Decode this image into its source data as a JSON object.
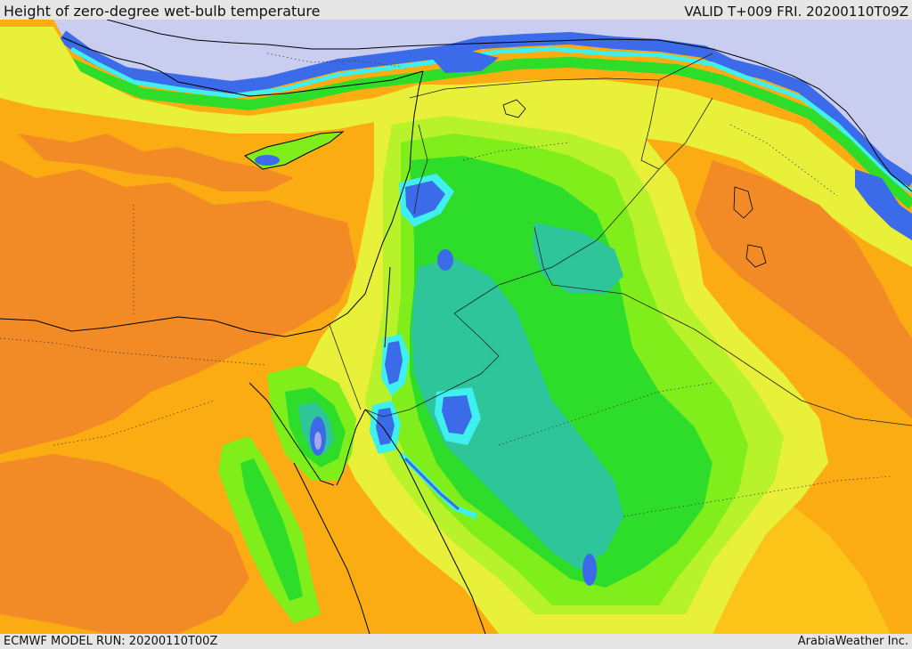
{
  "header": {
    "title": "Height of zero-degree wet-bulb temperature",
    "valid": "VALID T+009 FRI. 20200110T09Z"
  },
  "footer": {
    "model_run": "ECMWF MODEL RUN: 20200110T00Z",
    "credit": "ArabiaWeather Inc."
  },
  "palette": {
    "sea_north": "#c9cdef",
    "dark_orange": "#f28b25",
    "orange": "#fbac12",
    "light_orange": "#fcc419",
    "yellow": "#e8f03a",
    "yellow_green": "#b7f22a",
    "light_green": "#7fee1b",
    "green": "#2edc2a",
    "teal": "#2fc59a",
    "cyan": "#3ef0ee",
    "blue": "#3b6be8",
    "dark_blue": "#3434b4",
    "lavender": "#a9a6ea",
    "coastline": "#000000",
    "border": "#222222"
  }
}
